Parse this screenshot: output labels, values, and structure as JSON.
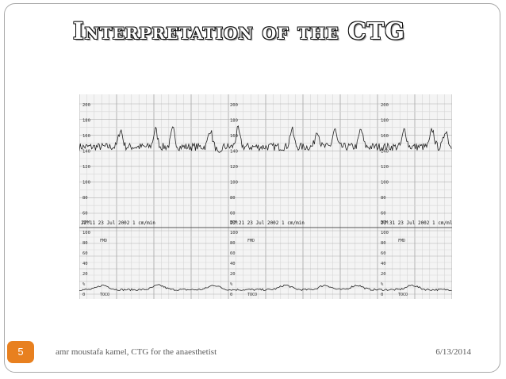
{
  "slide": {
    "title": "Interpretation of the CTG",
    "footer_left": "amr moustafa kamel, CTG for the anaesthetist",
    "footer_date": "6/13/2014",
    "slide_number": "5",
    "accent_color": "#e8801f"
  },
  "ctg": {
    "fhr_scale": [
      "200",
      "180",
      "160",
      "140",
      "120",
      "100",
      "80",
      "60"
    ],
    "bpm_label": "BPM",
    "panel_headers": [
      {
        "time": "22:11",
        "date": "23 Jul 2002",
        "speed": "1 cm/min"
      },
      {
        "time": "22:21",
        "date": "23 Jul 2002",
        "speed": "1 cm/min"
      },
      {
        "time": "22:31",
        "date": "23 Jul 2002",
        "speed": "1 cm/ml"
      }
    ],
    "toco_scale": [
      "100",
      "80",
      "60",
      "40",
      "20",
      "%",
      "0"
    ],
    "toco_label": "TOCO",
    "fmd_label": "FMD"
  }
}
